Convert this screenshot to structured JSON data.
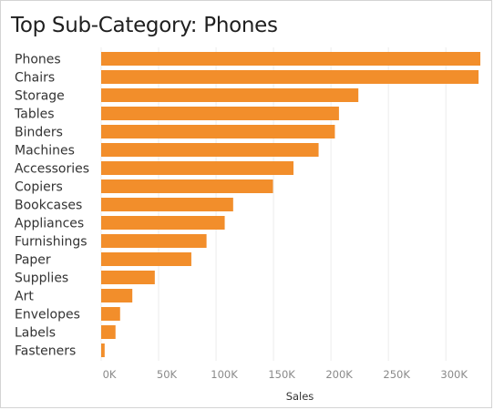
{
  "chart_data": {
    "type": "bar",
    "orientation": "horizontal",
    "title": "Top Sub-Category: Phones",
    "xlabel": "Sales",
    "ylabel": "",
    "xlim": [
      0,
      330000
    ],
    "grid": true,
    "legend": "none",
    "bar_color": "#f28e2b",
    "categories": [
      "Phones",
      "Chairs",
      "Storage",
      "Tables",
      "Binders",
      "Machines",
      "Accessories",
      "Copiers",
      "Bookcases",
      "Appliances",
      "Furnishings",
      "Paper",
      "Supplies",
      "Art",
      "Envelopes",
      "Labels",
      "Fasteners"
    ],
    "values": [
      330007,
      328449,
      223844,
      206966,
      203413,
      189239,
      167380,
      149528,
      114880,
      107532,
      91705,
      78479,
      46674,
      27119,
      16476,
      12486,
      3024
    ],
    "x_ticks": [
      0,
      50000,
      100000,
      150000,
      200000,
      250000,
      300000
    ],
    "x_tick_labels": [
      "0K",
      "50K",
      "100K",
      "150K",
      "200K",
      "250K",
      "300K"
    ]
  }
}
